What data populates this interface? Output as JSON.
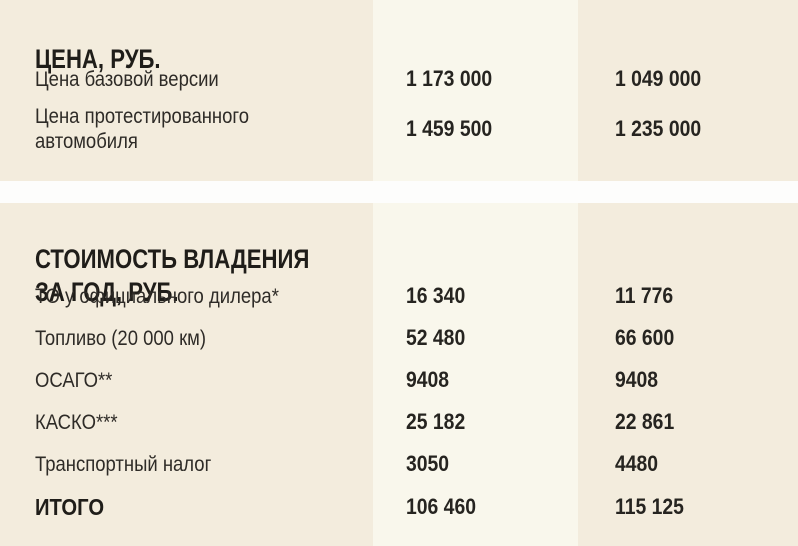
{
  "colors": {
    "block_background": "#f3ecdd",
    "column_band_background": "#f9f7ec",
    "separator_background": "#fdfdfc",
    "label_text": "#2e2b27",
    "heading_text": "#1f1d19"
  },
  "sections": [
    {
      "title": "ЦЕНА, РУБ.",
      "rows": [
        {
          "label": "Цена базовой версии",
          "col1": "1 173 000",
          "col2": "1 049 000"
        },
        {
          "label": "Цена протестированного\nавтомобиля",
          "col1": "1 459 500",
          "col2": "1 235 000"
        }
      ]
    },
    {
      "title": "СТОИМОСТЬ ВЛАДЕНИЯ\nЗА ГОД, РУБ.",
      "rows": [
        {
          "label": "ТО у официального дилера*",
          "col1": "16 340",
          "col2": "11 776"
        },
        {
          "label": "Топливо (20 000 км)",
          "col1": "52 480",
          "col2": "66 600"
        },
        {
          "label": "ОСАГО**",
          "col1": "9408",
          "col2": "9408"
        },
        {
          "label": "КАСКО***",
          "col1": "25 182",
          "col2": "22 861"
        },
        {
          "label": "Транспортный налог",
          "col1": "3050",
          "col2": "4480"
        },
        {
          "label": "ИТОГО",
          "col1": "106 460",
          "col2": "115 125"
        }
      ]
    }
  ]
}
